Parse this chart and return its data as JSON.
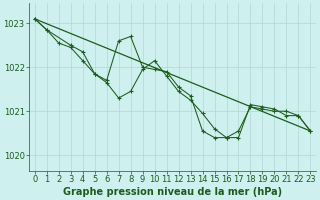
{
  "title": "Graphe pression niveau de la mer (hPa)",
  "bg_color": "#cef0ee",
  "line_color": "#1e5c1e",
  "grid_color": "#b0d8d5",
  "xlim": [
    -0.5,
    23.5
  ],
  "ylim": [
    1019.65,
    1023.45
  ],
  "yticks": [
    1020,
    1021,
    1022,
    1023
  ],
  "xticks": [
    0,
    1,
    2,
    3,
    4,
    5,
    6,
    7,
    8,
    9,
    10,
    11,
    12,
    13,
    14,
    15,
    16,
    17,
    18,
    19,
    20,
    21,
    22,
    23
  ],
  "series1_x": [
    0,
    1,
    2,
    3,
    4,
    5,
    6,
    7,
    8,
    9,
    10,
    11,
    12,
    13,
    14,
    15,
    16,
    17,
    18,
    19,
    20,
    21,
    22,
    23
  ],
  "series1_y": [
    1023.1,
    1022.85,
    1022.55,
    1022.45,
    1022.15,
    1021.85,
    1021.7,
    1022.6,
    1022.7,
    1022.0,
    1021.95,
    1021.9,
    1021.55,
    1021.35,
    1020.55,
    1020.4,
    1020.4,
    1020.55,
    1021.1,
    1021.05,
    1021.0,
    1021.0,
    1020.9,
    1020.55
  ],
  "series2_x": [
    0,
    1,
    3,
    4,
    5,
    6,
    7,
    8,
    9,
    10,
    11,
    12,
    13,
    14,
    15,
    16,
    17,
    18,
    19,
    20,
    21,
    22,
    23
  ],
  "series2_y": [
    1023.1,
    1022.85,
    1022.5,
    1022.35,
    1021.85,
    1021.65,
    1021.3,
    1021.45,
    1021.95,
    1022.15,
    1021.8,
    1021.45,
    1021.25,
    1020.95,
    1020.6,
    1020.4,
    1020.4,
    1021.15,
    1021.1,
    1021.05,
    1020.9,
    1020.9,
    1020.55
  ],
  "trend_x": [
    0,
    23
  ],
  "trend_y": [
    1023.1,
    1020.55
  ],
  "tick_fontsize": 6,
  "title_fontsize": 7
}
